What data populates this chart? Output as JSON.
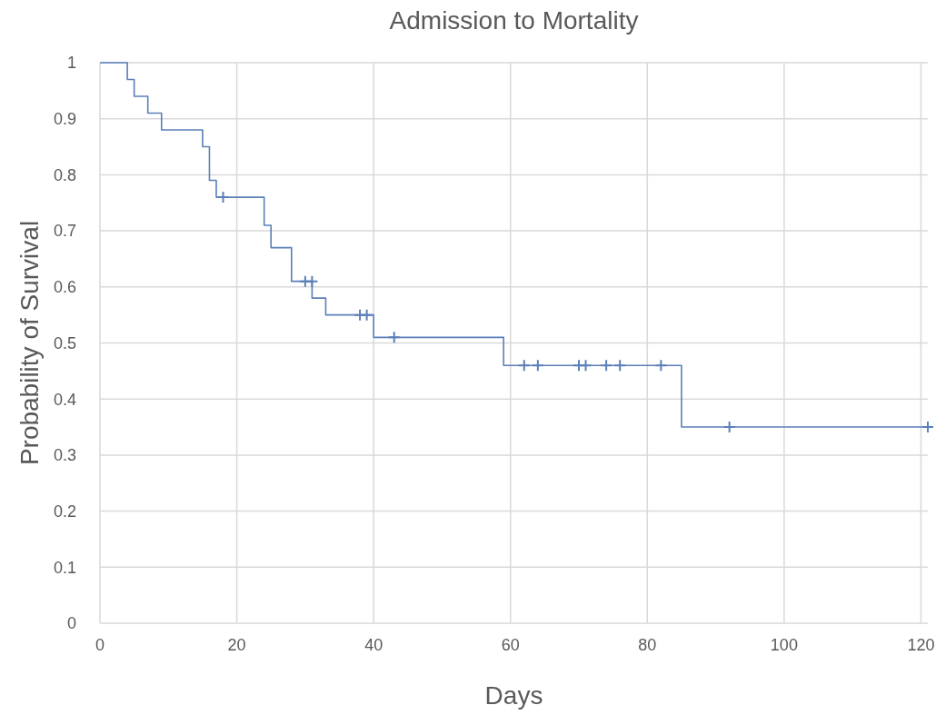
{
  "chart_data": {
    "type": "step",
    "title": "Admission to Mortality",
    "xlabel": "Days",
    "ylabel": "Probability of Survival",
    "xlim": [
      0,
      121
    ],
    "xticks": [
      0,
      20,
      40,
      60,
      80,
      100,
      120
    ],
    "ylim": [
      0,
      1
    ],
    "yticks": [
      0,
      0.1,
      0.2,
      0.3,
      0.4,
      0.5,
      0.6,
      0.7,
      0.8,
      0.9,
      1
    ],
    "grid": true,
    "series": [
      {
        "type": "step",
        "color": "#5b7fb8",
        "x": [
          0,
          4,
          5,
          7,
          9,
          15,
          16,
          17,
          24,
          25,
          28,
          31,
          33,
          40,
          59,
          85,
          121
        ],
        "values": [
          1,
          0.97,
          0.94,
          0.91,
          0.88,
          0.85,
          0.79,
          0.76,
          0.71,
          0.67,
          0.61,
          0.58,
          0.55,
          0.51,
          0.46,
          0.35,
          0.35
        ]
      },
      {
        "type": "scatter",
        "marker": "cross",
        "color": "#5b7fb8",
        "x": [
          18,
          30,
          31,
          38,
          39,
          43,
          62,
          64,
          70,
          71,
          74,
          76,
          82,
          92,
          121
        ],
        "values": [
          0.76,
          0.61,
          0.61,
          0.55,
          0.55,
          0.51,
          0.46,
          0.46,
          0.46,
          0.46,
          0.46,
          0.46,
          0.46,
          0.35,
          0.35
        ]
      }
    ]
  }
}
